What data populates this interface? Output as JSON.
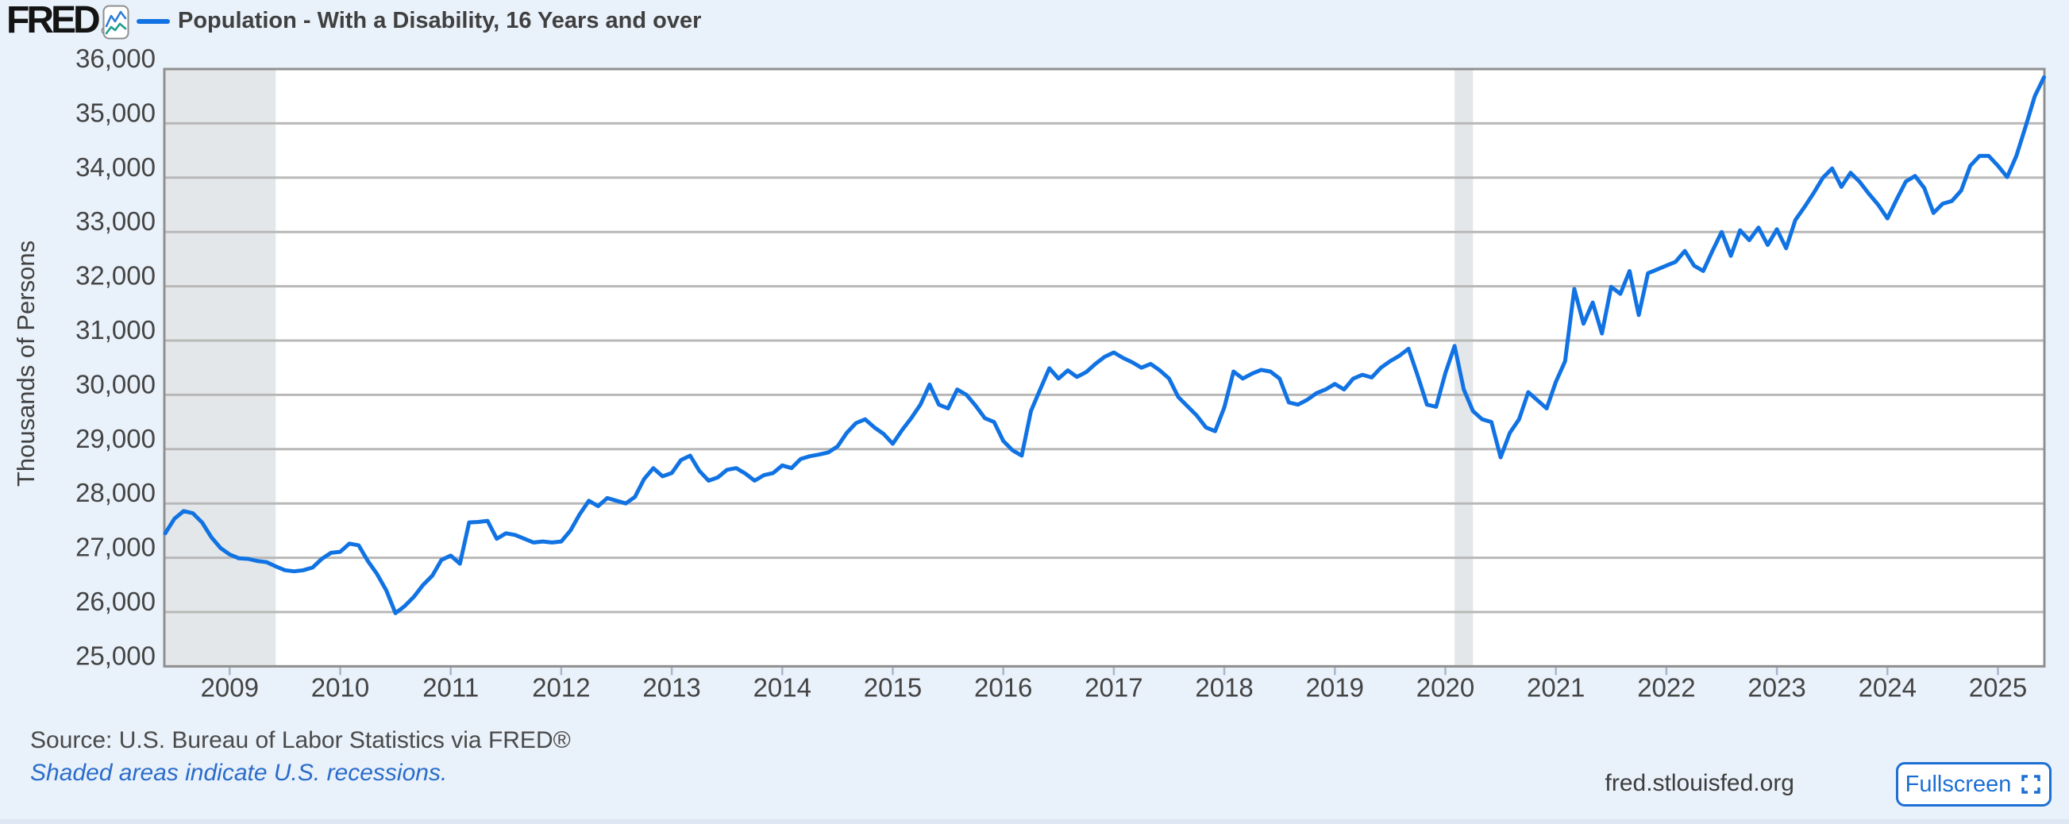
{
  "header": {
    "logo_text": "FRED",
    "registered_mark": "®",
    "series_legend_label": "Population - With a Disability, 16 Years and over"
  },
  "y_axis": {
    "title": "Thousands of Persons",
    "tick_values": [
      36000,
      35000,
      34000,
      33000,
      32000,
      31000,
      30000,
      29000,
      28000,
      27000,
      26000,
      25000
    ],
    "tick_labels": [
      "36,000",
      "35,000",
      "34,000",
      "33,000",
      "32,000",
      "31,000",
      "30,000",
      "29,000",
      "28,000",
      "27,000",
      "26,000",
      "25,000"
    ]
  },
  "x_axis": {
    "tick_labels": [
      "2009",
      "2010",
      "2011",
      "2012",
      "2013",
      "2014",
      "2015",
      "2016",
      "2017",
      "2018",
      "2019",
      "2020",
      "2021",
      "2022",
      "2023",
      "2024",
      "2025"
    ]
  },
  "footer": {
    "source_text": "Source: U.S. Bureau of Labor Statistics via FRED®",
    "recession_note": "Shaded areas indicate U.S. recessions.",
    "site_url": "fred.stlouisfed.org",
    "fullscreen_label": "Fullscreen"
  },
  "colors": {
    "background": "#e9f1fa",
    "plot_background": "#ffffff",
    "gridline": "#b8b8b8",
    "plot_border": "#909090",
    "recession_band": "#e4e7e9",
    "tick_mark": "#a8b6ca",
    "axis_text": "#444444",
    "series_line": "#1173e3",
    "link_blue": "#2a6cc9",
    "button_blue": "#1c6fd4"
  },
  "chart_data": {
    "type": "line",
    "title": "Population - With a Disability, 16 Years and over",
    "ylabel": "Thousands of Persons",
    "xlabel": "",
    "ylim": [
      25000,
      36000
    ],
    "grid": true,
    "legend_position": "top-left",
    "frequency": "monthly",
    "x_start": "2008-06",
    "x_end": "2025-06",
    "recessions": [
      {
        "start": "2008-06",
        "end": "2009-06"
      },
      {
        "start": "2020-02",
        "end": "2020-04"
      }
    ],
    "series": [
      {
        "name": "Population - With a Disability, 16 Years and over",
        "start_year": 2008,
        "start_month": 6,
        "values": [
          27450,
          27720,
          27860,
          27820,
          27650,
          27380,
          27180,
          27060,
          26990,
          26980,
          26940,
          26920,
          26840,
          26770,
          26750,
          26770,
          26820,
          26980,
          27090,
          27110,
          27260,
          27230,
          26940,
          26700,
          26400,
          25980,
          26110,
          26280,
          26500,
          26670,
          26960,
          27040,
          26890,
          27650,
          27660,
          27680,
          27350,
          27450,
          27420,
          27350,
          27280,
          27300,
          27280,
          27300,
          27500,
          27800,
          28050,
          27950,
          28100,
          28050,
          28000,
          28120,
          28450,
          28650,
          28500,
          28560,
          28800,
          28880,
          28600,
          28420,
          28480,
          28620,
          28650,
          28550,
          28420,
          28520,
          28560,
          28700,
          28650,
          28820,
          28870,
          28900,
          28940,
          29050,
          29300,
          29480,
          29550,
          29400,
          29280,
          29100,
          29350,
          29570,
          29820,
          30190,
          29820,
          29750,
          30100,
          30000,
          29800,
          29570,
          29500,
          29150,
          28980,
          28880,
          29700,
          30100,
          30490,
          30300,
          30450,
          30330,
          30420,
          30570,
          30700,
          30780,
          30680,
          30600,
          30500,
          30570,
          30450,
          30300,
          29960,
          29790,
          29620,
          29400,
          29330,
          29770,
          30430,
          30300,
          30390,
          30460,
          30430,
          30300,
          29860,
          29820,
          29910,
          30030,
          30100,
          30200,
          30100,
          30300,
          30370,
          30320,
          30500,
          30620,
          30720,
          30850,
          30350,
          29820,
          29780,
          30400,
          30900,
          30100,
          29700,
          29550,
          29500,
          28850,
          29300,
          29550,
          30050,
          29900,
          29750,
          30240,
          30620,
          31950,
          31310,
          31700,
          31130,
          31990,
          31860,
          32280,
          31470,
          32240,
          32310,
          32380,
          32450,
          32650,
          32380,
          32280,
          32650,
          33000,
          32560,
          33030,
          32850,
          33080,
          32760,
          33050,
          32700,
          33220,
          33460,
          33720,
          34000,
          34170,
          33830,
          34090,
          33920,
          33700,
          33500,
          33250,
          33600,
          33930,
          34030,
          33810,
          33350,
          33520,
          33570,
          33760,
          34220,
          34400,
          34400,
          34220,
          34010,
          34400,
          34940,
          35500,
          35850
        ]
      }
    ]
  }
}
